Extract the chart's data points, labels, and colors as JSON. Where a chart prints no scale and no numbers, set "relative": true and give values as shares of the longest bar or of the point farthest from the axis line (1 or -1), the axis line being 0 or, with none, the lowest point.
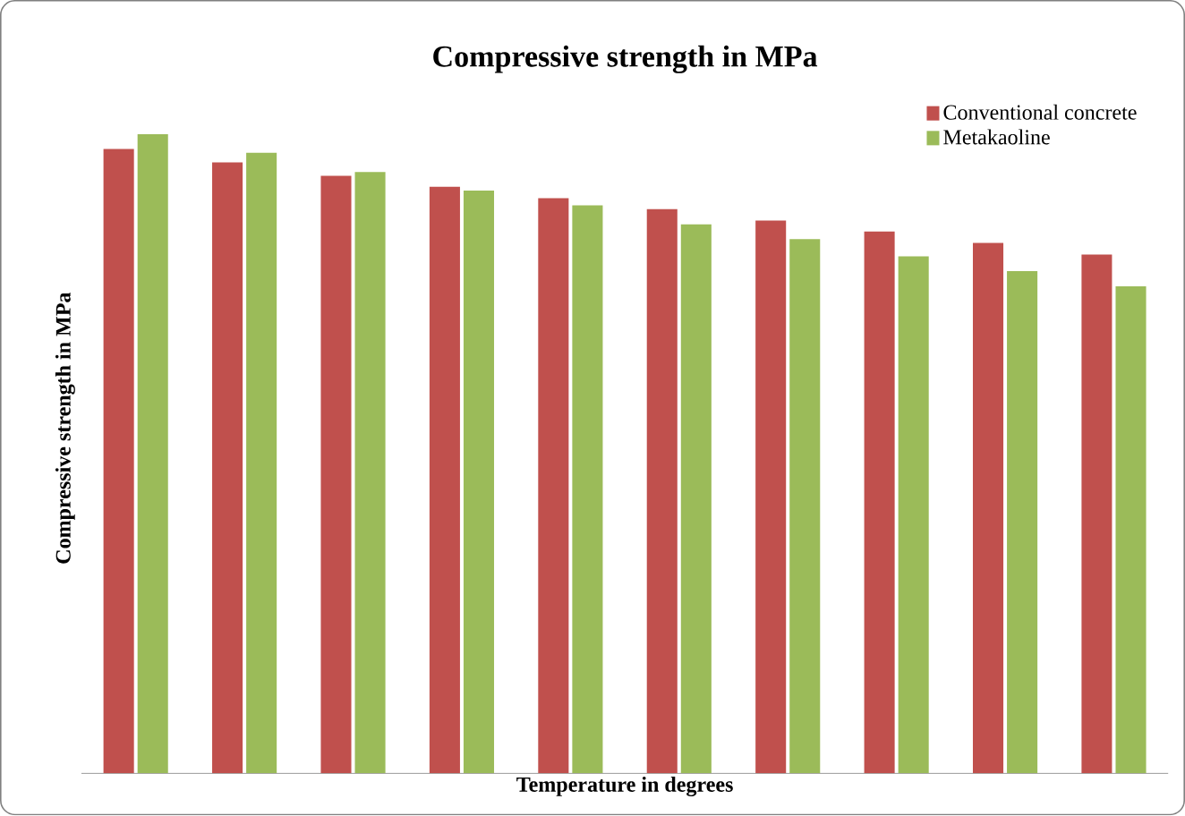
{
  "chart_data": {
    "type": "bar",
    "title": "Compressive strength in MPa",
    "xlabel": "Temperature in degrees",
    "ylabel": "Compressive strength in MPa",
    "relative": true,
    "legend": "top right",
    "categories": [
      null,
      null,
      null,
      null,
      null,
      null,
      null,
      null,
      null,
      null
    ],
    "series": [
      {
        "name": "Conventional  concrete",
        "color": "#c0504d",
        "values": [
          0.977,
          0.956,
          0.935,
          0.918,
          0.9,
          0.883,
          0.865,
          0.848,
          0.83,
          0.812
        ]
      },
      {
        "name": "Metakaoline",
        "color": "#9bbb59",
        "values": [
          1.0,
          0.971,
          0.941,
          0.912,
          0.889,
          0.859,
          0.836,
          0.809,
          0.786,
          0.762
        ]
      }
    ]
  }
}
